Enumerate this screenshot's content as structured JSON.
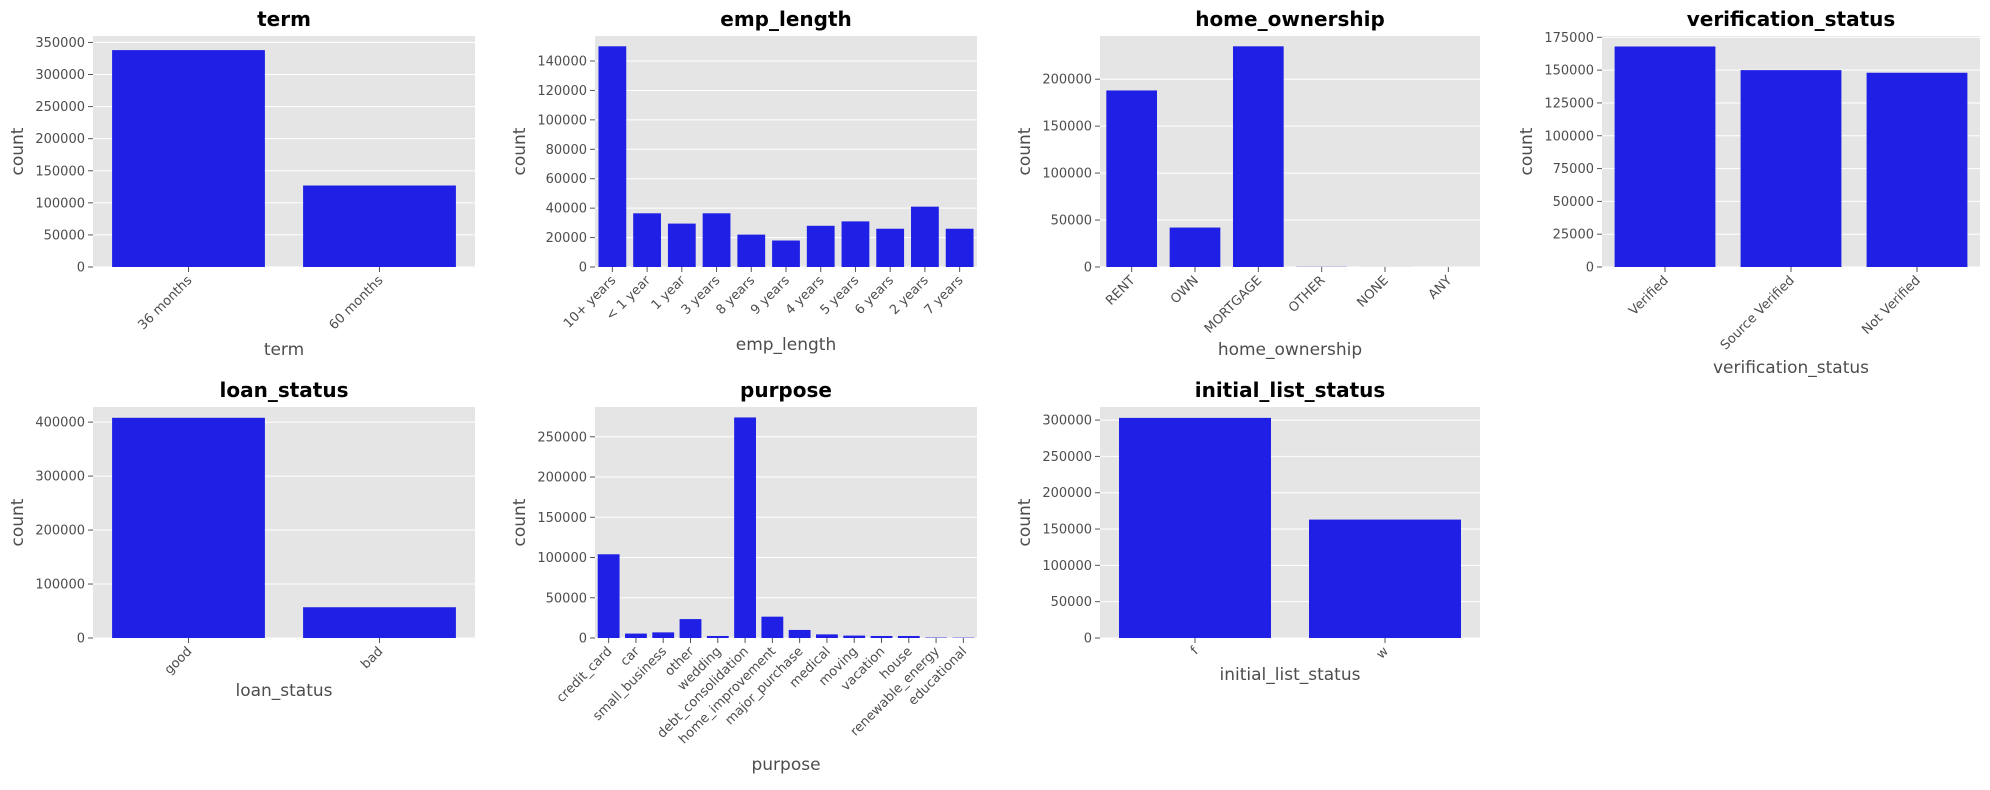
{
  "style": {
    "bar_color": "#1f1fe5",
    "panel_background": "#e5e5e5",
    "grid_color": "#ffffff"
  },
  "chart_data": [
    {
      "type": "bar",
      "title": "term",
      "xlabel": "term",
      "ylabel": "count",
      "categories": [
        "36 months",
        "60 months"
      ],
      "values": [
        338000,
        127000
      ],
      "ylim": [
        0,
        360000
      ],
      "yticks": [
        0,
        50000,
        100000,
        150000,
        200000,
        250000,
        300000,
        350000
      ],
      "grid": true
    },
    {
      "type": "bar",
      "title": "emp_length",
      "xlabel": "emp_length",
      "ylabel": "count",
      "categories": [
        "10+ years",
        "< 1 year",
        "1 year",
        "3 years",
        "8 years",
        "9 years",
        "4 years",
        "5 years",
        "6 years",
        "2 years",
        "7 years"
      ],
      "values": [
        150000,
        36500,
        29500,
        36500,
        22000,
        18000,
        28000,
        31000,
        26000,
        41000,
        26000
      ],
      "ylim": [
        0,
        157000
      ],
      "yticks": [
        0,
        20000,
        40000,
        60000,
        80000,
        100000,
        120000,
        140000
      ],
      "grid": true
    },
    {
      "type": "bar",
      "title": "home_ownership",
      "xlabel": "home_ownership",
      "ylabel": "count",
      "categories": [
        "RENT",
        "OWN",
        "MORTGAGE",
        "OTHER",
        "NONE",
        "ANY"
      ],
      "values": [
        188000,
        42000,
        235000,
        200,
        50,
        5
      ],
      "ylim": [
        0,
        246000
      ],
      "yticks": [
        0,
        50000,
        100000,
        150000,
        200000
      ],
      "grid": true
    },
    {
      "type": "bar",
      "title": "verification_status",
      "xlabel": "verification_status",
      "ylabel": "count",
      "categories": [
        "Verified",
        "Source Verified",
        "Not Verified"
      ],
      "values": [
        168000,
        150000,
        148000
      ],
      "ylim": [
        0,
        176000
      ],
      "yticks": [
        0,
        25000,
        50000,
        75000,
        100000,
        125000,
        150000,
        175000
      ],
      "grid": true
    },
    {
      "type": "bar",
      "title": "loan_status",
      "xlabel": "loan_status",
      "ylabel": "count",
      "categories": [
        "good",
        "bad"
      ],
      "values": [
        408000,
        57000
      ],
      "ylim": [
        0,
        428000
      ],
      "yticks": [
        0,
        100000,
        200000,
        300000,
        400000
      ],
      "grid": true
    },
    {
      "type": "bar",
      "title": "purpose",
      "xlabel": "purpose",
      "ylabel": "count",
      "categories": [
        "credit_card",
        "car",
        "small_business",
        "other",
        "wedding",
        "debt_consolidation",
        "home_improvement",
        "major_purchase",
        "medical",
        "moving",
        "vacation",
        "house",
        "renewable_energy",
        "educational"
      ],
      "values": [
        104000,
        5500,
        7000,
        23500,
        2500,
        274000,
        26500,
        10000,
        4500,
        3000,
        2500,
        2500,
        500,
        400
      ],
      "ylim": [
        0,
        287000
      ],
      "yticks": [
        0,
        50000,
        100000,
        150000,
        200000,
        250000
      ],
      "grid": true
    },
    {
      "type": "bar",
      "title": "initial_list_status",
      "xlabel": "initial_list_status",
      "ylabel": "count",
      "categories": [
        "f",
        "w"
      ],
      "values": [
        303000,
        163000
      ],
      "ylim": [
        0,
        318000
      ],
      "yticks": [
        0,
        50000,
        100000,
        150000,
        200000,
        250000,
        300000
      ],
      "grid": true
    }
  ]
}
